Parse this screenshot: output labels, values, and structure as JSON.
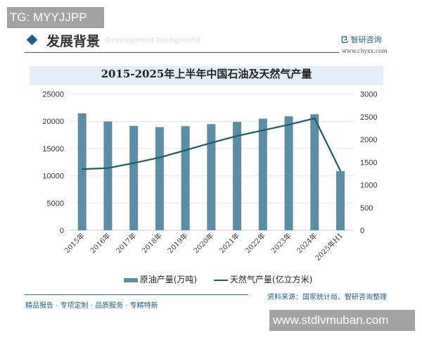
{
  "watermarks": {
    "top_left": "TG: MYYJJPP",
    "bottom_right": "www.stdlvmuban.com"
  },
  "header": {
    "title": "发展背景",
    "subtitle_en": "Development background",
    "logo_text": "智研咨询",
    "logo_url": "www.chyxx.com"
  },
  "footer": {
    "slogan": "精品报告 · 专项定制 · 品质服务 · 专精特新",
    "source": "资料来源：国家统计局、智研咨询整理"
  },
  "colors": {
    "bar": "#5b8ea6",
    "line": "#1a5b6e",
    "accent": "#1f5f8e"
  },
  "chart_data": {
    "type": "bar",
    "title": "2015-2025年上半年中国石油及天然气产量",
    "categories": [
      "2015年",
      "2016年",
      "2017年",
      "2018年",
      "2019年",
      "2020年",
      "2021年",
      "2022年",
      "2023年",
      "2024年",
      "2025年H1"
    ],
    "series": [
      {
        "name": "原油产量(万吨)",
        "type": "bar",
        "axis": "left",
        "values": [
          21456,
          19969,
          19151,
          18932,
          19101,
          19477,
          19888,
          20472,
          20902,
          21282,
          10845
        ]
      },
      {
        "name": "天然气产量(亿立方米)",
        "type": "line",
        "axis": "right",
        "values": [
          1346,
          1369,
          1480,
          1602,
          1761,
          1925,
          2076,
          2201,
          2324,
          2464,
          1308
        ]
      }
    ],
    "ylim_left": [
      0,
      25000
    ],
    "yticks_left": [
      0,
      5000,
      10000,
      15000,
      20000,
      25000
    ],
    "ylim_right": [
      0,
      3000
    ],
    "yticks_right": [
      0,
      500,
      1000,
      1500,
      2000,
      2500,
      3000
    ],
    "grid": true,
    "legend": "bottom"
  }
}
